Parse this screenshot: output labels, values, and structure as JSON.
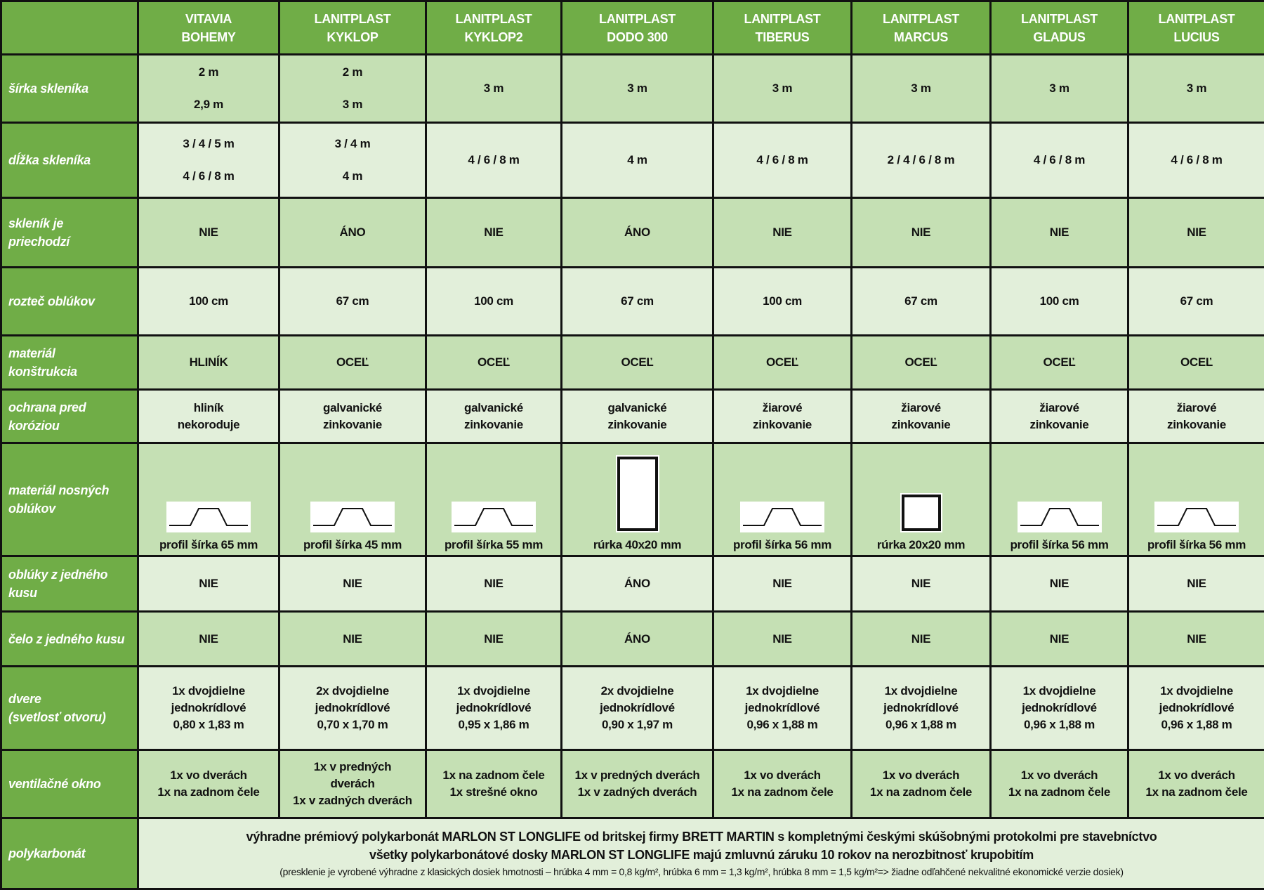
{
  "columns": [
    {
      "l1": "VITAVIA",
      "l2": "BOHEMY"
    },
    {
      "l1": "LANITPLAST",
      "l2": "KYKLOP"
    },
    {
      "l1": "LANITPLAST",
      "l2": "KYKLOP2"
    },
    {
      "l1": "LANITPLAST",
      "l2": "DODO 300"
    },
    {
      "l1": "LANITPLAST",
      "l2": "TIBERUS"
    },
    {
      "l1": "LANITPLAST",
      "l2": "MARCUS"
    },
    {
      "l1": "LANITPLAST",
      "l2": "GLADUS"
    },
    {
      "l1": "LANITPLAST",
      "l2": "LUCIUS"
    }
  ],
  "rows": [
    {
      "label": [
        "šírka skleníka"
      ],
      "cells": [
        [
          "2 m",
          "2,9 m"
        ],
        [
          "2 m",
          "3 m"
        ],
        [
          "3 m"
        ],
        [
          "3 m"
        ],
        [
          "3 m"
        ],
        [
          "3 m"
        ],
        [
          "3 m"
        ],
        [
          "3 m"
        ]
      ],
      "gap": true
    },
    {
      "label": [
        "dĺžka skleníka"
      ],
      "cells": [
        [
          "3 / 4 / 5 m",
          "4 / 6 / 8 m"
        ],
        [
          "3 / 4 m",
          "4 m"
        ],
        [
          "4 / 6 / 8 m"
        ],
        [
          "4 m"
        ],
        [
          "4 / 6 / 8 m"
        ],
        [
          "2 / 4 / 6 / 8 m"
        ],
        [
          "4 / 6 / 8 m"
        ],
        [
          "4 / 6 / 8 m"
        ]
      ],
      "gap": true
    },
    {
      "label": [
        "skleník je",
        "priechodzí"
      ],
      "cells": [
        [
          "NIE"
        ],
        [
          "ÁNO"
        ],
        [
          "NIE"
        ],
        [
          "ÁNO"
        ],
        [
          "NIE"
        ],
        [
          "NIE"
        ],
        [
          "NIE"
        ],
        [
          "NIE"
        ]
      ]
    },
    {
      "label": [
        "rozteč oblúkov"
      ],
      "cells": [
        [
          "100 cm"
        ],
        [
          "67 cm"
        ],
        [
          "100 cm"
        ],
        [
          "67 cm"
        ],
        [
          "100 cm"
        ],
        [
          "67 cm"
        ],
        [
          "100 cm"
        ],
        [
          "67 cm"
        ]
      ]
    },
    {
      "label": [
        "materiál",
        "konštrukcia"
      ],
      "cells": [
        [
          "HLINÍK"
        ],
        [
          "OCEĽ"
        ],
        [
          "OCEĽ"
        ],
        [
          "OCEĽ"
        ],
        [
          "OCEĽ"
        ],
        [
          "OCEĽ"
        ],
        [
          "OCEĽ"
        ],
        [
          "OCEĽ"
        ]
      ]
    },
    {
      "label": [
        "ochrana pred",
        "koróziou"
      ],
      "cells": [
        [
          "hliník",
          "nekoroduje"
        ],
        [
          "galvanické",
          "zinkovanie"
        ],
        [
          "galvanické",
          "zinkovanie"
        ],
        [
          "galvanické",
          "zinkovanie"
        ],
        [
          "žiarové",
          "zinkovanie"
        ],
        [
          "žiarové",
          "zinkovanie"
        ],
        [
          "žiarové",
          "zinkovanie"
        ],
        [
          "žiarové",
          "zinkovanie"
        ]
      ]
    },
    {
      "label": [
        "materiál nosných",
        "oblúkov"
      ],
      "icons": [
        {
          "icon": "profile-icon",
          "text": "profil šírka 65 mm"
        },
        {
          "icon": "profile-icon",
          "text": "profil šírka 45 mm"
        },
        {
          "icon": "profile-icon",
          "text": "profil šírka 55 mm"
        },
        {
          "icon": "tube-rect-icon",
          "text": "rúrka 40x20 mm"
        },
        {
          "icon": "profile-icon",
          "text": "profil šírka 56 mm"
        },
        {
          "icon": "tube-square-icon",
          "text": "rúrka 20x20 mm"
        },
        {
          "icon": "profile-icon",
          "text": "profil šírka 56 mm"
        },
        {
          "icon": "profile-icon",
          "text": "profil šírka 56 mm"
        }
      ]
    },
    {
      "label": [
        "oblúky z jedného",
        "kusu"
      ],
      "cells": [
        [
          "NIE"
        ],
        [
          "NIE"
        ],
        [
          "NIE"
        ],
        [
          "ÁNO"
        ],
        [
          "NIE"
        ],
        [
          "NIE"
        ],
        [
          "NIE"
        ],
        [
          "NIE"
        ]
      ]
    },
    {
      "label": [
        "čelo z jedného kusu"
      ],
      "cells": [
        [
          "NIE"
        ],
        [
          "NIE"
        ],
        [
          "NIE"
        ],
        [
          "ÁNO"
        ],
        [
          "NIE"
        ],
        [
          "NIE"
        ],
        [
          "NIE"
        ],
        [
          "NIE"
        ]
      ]
    },
    {
      "label": [
        "dvere",
        "(svetlosť otvoru)"
      ],
      "cells": [
        [
          "1x dvojdielne",
          "jednokrídlové",
          "0,80 x 1,83 m"
        ],
        [
          "2x dvojdielne",
          "jednokrídlové",
          "0,70 x 1,70 m"
        ],
        [
          "1x dvojdielne",
          "jednokrídlové",
          "0,95 x 1,86 m"
        ],
        [
          "2x dvojdielne",
          "jednokrídlové",
          "0,90 x 1,97 m"
        ],
        [
          "1x dvojdielne",
          "jednokrídlové",
          "0,96 x 1,88 m"
        ],
        [
          "1x dvojdielne",
          "jednokrídlové",
          "0,96 x 1,88 m"
        ],
        [
          "1x dvojdielne",
          "jednokrídlové",
          "0,96 x 1,88 m"
        ],
        [
          "1x dvojdielne",
          "jednokrídlové",
          "0,96 x 1,88 m"
        ]
      ]
    },
    {
      "label": [
        "ventilačné okno"
      ],
      "cells": [
        [
          "1x vo dverách",
          "1x na zadnom čele"
        ],
        [
          "1x v predných",
          "dverách",
          "1x v zadných dverách"
        ],
        [
          "1x na zadnom čele",
          "1x strešné okno"
        ],
        [
          "1x v predných dverách",
          "1x v zadných dverách"
        ],
        [
          "1x vo dverách",
          "1x na zadnom čele"
        ],
        [
          "1x vo dverách",
          "1x na zadnom čele"
        ],
        [
          "1x vo dverách",
          "1x na zadnom čele"
        ],
        [
          "1x vo dverách",
          "1x na zadnom čele"
        ]
      ]
    }
  ],
  "footer": {
    "label": "polykarbonát",
    "line1": "výhradne prémiový polykarbonát MARLON ST LONGLIFE od britskej firmy BRETT MARTIN s kompletnými českými skúšobnými protokolmi pre stavebníctvo",
    "line2": "všetky polykarbonátové dosky MARLON ST LONGLIFE majú zmluvnú záruku 10 rokov na nerozbitnosť krupobitím",
    "line3": "(presklenie je vyrobené výhradne z klasických dosiek hmotnosti – hrúbka 4 mm = 0,8 kg/m², hrúbka 6 mm = 1,3 kg/m², hrúbka 8 mm = 1,5 kg/m²=> žiadne odľahčené nekvalitné ekonomické verzie dosiek)"
  },
  "colors": {
    "header": "#70ad47",
    "cell_dark": "#c5e0b4",
    "cell_light": "#e2efda"
  }
}
